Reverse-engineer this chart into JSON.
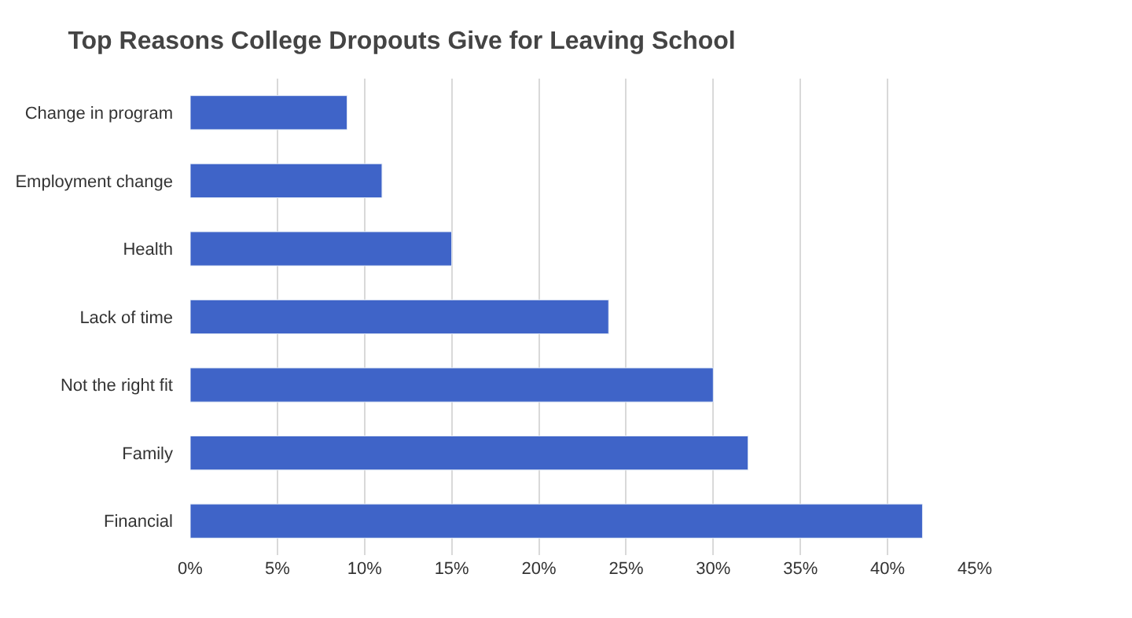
{
  "chart_data": {
    "type": "bar",
    "orientation": "horizontal",
    "title": "Top Reasons College Dropouts Give for Leaving School",
    "categories": [
      "Change in program",
      "Employment change",
      "Health",
      "Lack of time",
      "Not the right fit",
      "Family",
      "Financial"
    ],
    "values": [
      9,
      11,
      15,
      24,
      30,
      32,
      42
    ],
    "color": "#3f64c8",
    "xlim": [
      0,
      45
    ],
    "xticks": [
      {
        "value": 0,
        "label": "0%"
      },
      {
        "value": 5,
        "label": "5%"
      },
      {
        "value": 10,
        "label": "10%"
      },
      {
        "value": 15,
        "label": "15%"
      },
      {
        "value": 20,
        "label": "20%"
      },
      {
        "value": 25,
        "label": "25%"
      },
      {
        "value": 30,
        "label": "30%"
      },
      {
        "value": 35,
        "label": "35%"
      },
      {
        "value": 40,
        "label": "40%"
      },
      {
        "value": 45,
        "label": "45%"
      }
    ],
    "grid": "x"
  }
}
